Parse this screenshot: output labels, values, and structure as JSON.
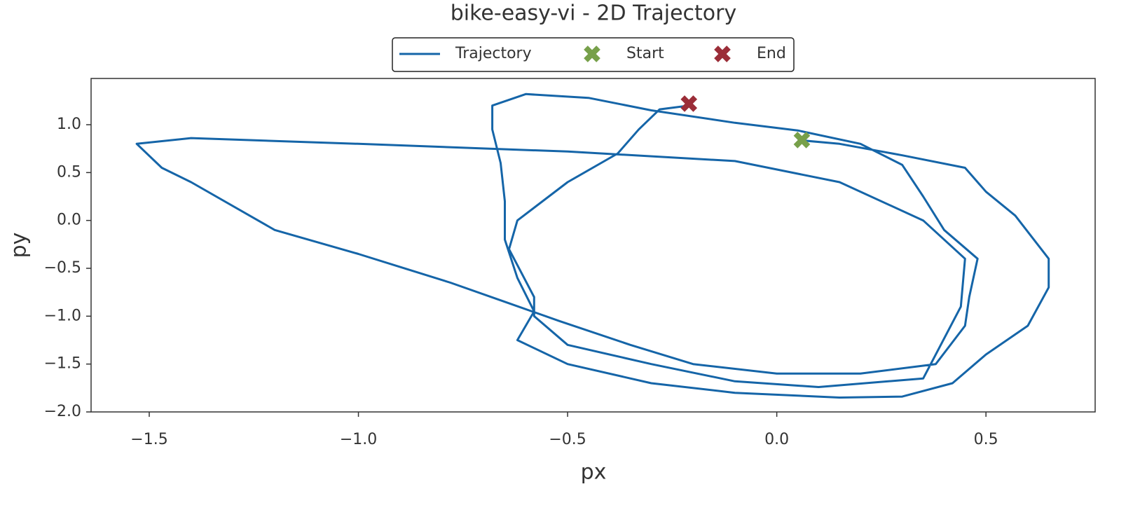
{
  "chart_data": {
    "type": "line",
    "title": "bike-easy-vi - 2D Trajectory",
    "x_label": "px",
    "y_label": "py",
    "legend": "upper center",
    "xlim": [
      -1.639,
      0.761
    ],
    "ylim": [
      -2.0,
      1.483
    ],
    "xticks": [
      {
        "value": -1.5,
        "label": "−1.5"
      },
      {
        "value": -1.0,
        "label": "−1.0"
      },
      {
        "value": -0.5,
        "label": "−0.5"
      },
      {
        "value": 0.0,
        "label": "0.0"
      },
      0.5
    ],
    "yticks": [
      {
        "value": -2.0,
        "label": "−2.0"
      },
      {
        "value": -1.5,
        "label": "−1.5"
      },
      {
        "value": -1.0,
        "label": "−1.0"
      },
      {
        "value": -0.5,
        "label": "−0.5"
      },
      {
        "value": 0.0,
        "label": "0.0"
      },
      0.5,
      {
        "value": 1.0,
        "label": "1.0"
      }
    ],
    "series": [
      {
        "name": "Trajectory",
        "color": "#1565a8",
        "marker": "line",
        "x": [
          0.05,
          0.15,
          0.3,
          0.45,
          0.5,
          0.57,
          0.65,
          0.65,
          0.6,
          0.5,
          0.42,
          0.3,
          0.15,
          -0.1,
          -0.3,
          -0.5,
          -0.62,
          -0.58,
          -0.62,
          -0.65,
          -0.65,
          -0.66,
          -0.68,
          -0.68,
          -0.6,
          -0.45,
          -0.3,
          -0.1,
          0.05,
          0.2,
          0.3,
          0.35,
          0.4,
          0.48,
          0.46,
          0.45,
          0.38,
          0.2,
          0.0,
          -0.2,
          -0.35,
          -0.52,
          -0.65,
          -0.78,
          -1.0,
          -1.2,
          -1.4,
          -1.47,
          -1.53,
          -1.4,
          -1.0,
          -0.5,
          -0.1,
          0.15,
          0.35,
          0.45,
          0.44,
          0.35,
          0.1,
          -0.1,
          -0.3,
          -0.5,
          -0.58,
          -0.58,
          -0.64,
          -0.62,
          -0.5,
          -0.38,
          -0.33,
          -0.28,
          -0.21
        ],
        "values": [
          0.84,
          0.8,
          0.68,
          0.55,
          0.3,
          0.05,
          -0.4,
          -0.7,
          -1.1,
          -1.4,
          -1.7,
          -1.84,
          -1.85,
          -1.8,
          -1.7,
          -1.5,
          -1.25,
          -0.95,
          -0.6,
          -0.2,
          0.2,
          0.6,
          0.95,
          1.2,
          1.32,
          1.28,
          1.15,
          1.02,
          0.94,
          0.8,
          0.58,
          0.25,
          -0.1,
          -0.4,
          -0.8,
          -1.1,
          -1.5,
          -1.6,
          -1.6,
          -1.5,
          -1.3,
          -1.05,
          -0.85,
          -0.65,
          -0.35,
          -0.1,
          0.4,
          0.55,
          0.8,
          0.86,
          0.8,
          0.72,
          0.62,
          0.4,
          0.0,
          -0.4,
          -0.9,
          -1.65,
          -1.74,
          -1.68,
          -1.5,
          -1.3,
          -1.0,
          -0.8,
          -0.3,
          0.0,
          0.4,
          0.7,
          0.95,
          1.16,
          1.2
        ]
      },
      {
        "name": "Start",
        "color": "#77a04a",
        "marker": "x",
        "x": [
          0.06
        ],
        "values": [
          0.84
        ]
      },
      {
        "name": "End",
        "color": "#9b2d38",
        "marker": "x",
        "x": [
          -0.21
        ],
        "values": [
          1.22
        ]
      }
    ]
  }
}
